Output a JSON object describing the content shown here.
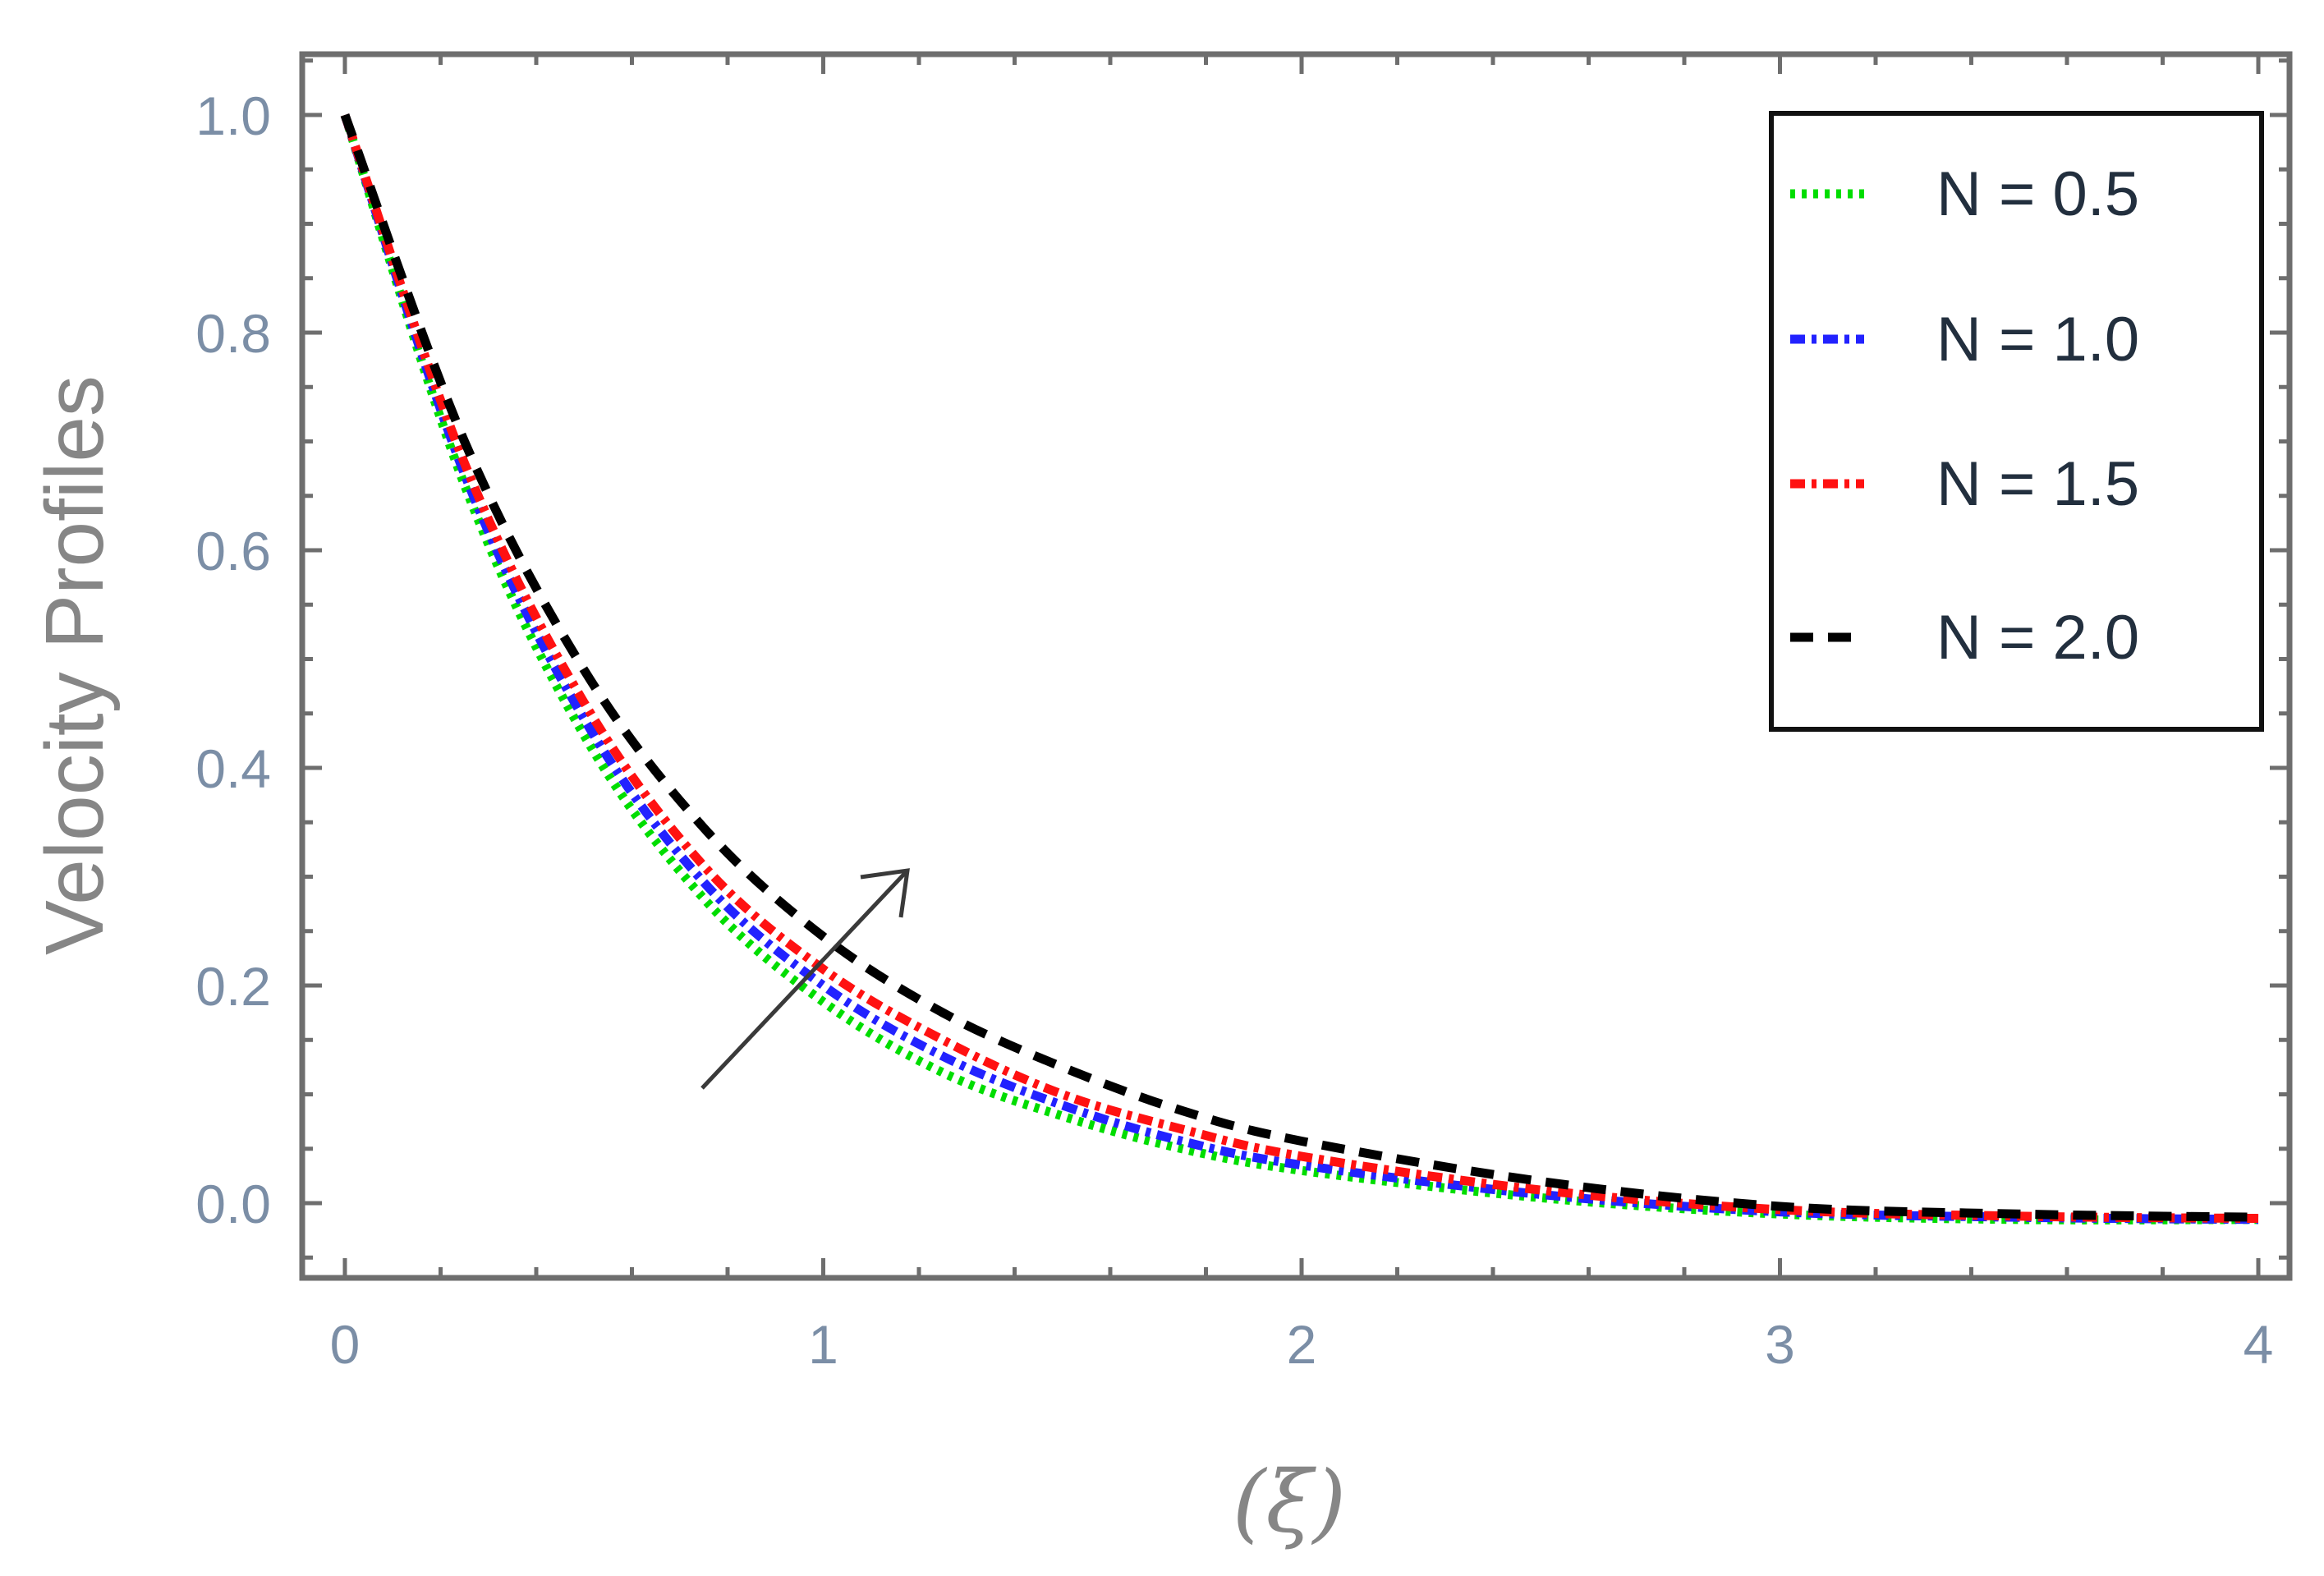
{
  "chart_data": {
    "type": "line",
    "xlabel": "(ξ)",
    "ylabel": "Velocity Profiles",
    "xlim": [
      0,
      4
    ],
    "ylim": [
      -0.07,
      1.07
    ],
    "x_ticks": [
      "0",
      "1",
      "2",
      "3",
      "4"
    ],
    "y_ticks": [
      "0.0",
      "0.2",
      "0.4",
      "0.6",
      "0.8",
      "1.0"
    ],
    "grid": false,
    "legend_position": "top-right",
    "annotation": "arrow indicating increasing N",
    "series": [
      {
        "name": "N = 0.5",
        "color": "#00dd00",
        "style": "dotted",
        "x": [
          0,
          0.25,
          0.5,
          0.75,
          1.0,
          1.25,
          1.5,
          1.75,
          2.0,
          2.5,
          3.0,
          3.5,
          4.0
        ],
        "y": [
          1.0,
          0.66,
          0.43,
          0.28,
          0.185,
          0.12,
          0.08,
          0.05,
          0.03,
          0.005,
          -0.01,
          -0.015,
          -0.015
        ]
      },
      {
        "name": "N = 1.0",
        "color": "#2222ff",
        "style": "dash-dot",
        "x": [
          0,
          0.25,
          0.5,
          0.75,
          1.0,
          1.25,
          1.5,
          1.75,
          2.0,
          2.5,
          3.0,
          3.5,
          4.0
        ],
        "y": [
          1.0,
          0.67,
          0.445,
          0.295,
          0.2,
          0.135,
          0.09,
          0.057,
          0.035,
          0.008,
          -0.008,
          -0.013,
          -0.015
        ]
      },
      {
        "name": "N = 1.5",
        "color": "#ff1111",
        "style": "dash-dot",
        "x": [
          0,
          0.25,
          0.5,
          0.75,
          1.0,
          1.25,
          1.5,
          1.75,
          2.0,
          2.5,
          3.0,
          3.5,
          4.0
        ],
        "y": [
          1.0,
          0.68,
          0.46,
          0.31,
          0.215,
          0.15,
          0.1,
          0.068,
          0.043,
          0.012,
          -0.006,
          -0.012,
          -0.014
        ]
      },
      {
        "name": "N = 2.0",
        "color": "#000000",
        "style": "dashed",
        "x": [
          0,
          0.25,
          0.5,
          0.75,
          1.0,
          1.25,
          1.5,
          1.75,
          2.0,
          2.5,
          3.0,
          3.5,
          4.0
        ],
        "y": [
          1.0,
          0.7,
          0.49,
          0.345,
          0.245,
          0.175,
          0.125,
          0.085,
          0.057,
          0.02,
          -0.003,
          -0.01,
          -0.013
        ]
      }
    ]
  }
}
